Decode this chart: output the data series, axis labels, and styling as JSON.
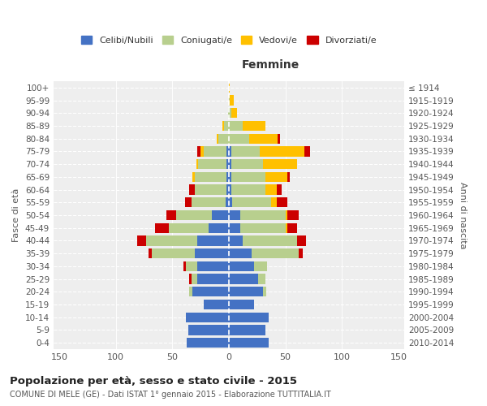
{
  "age_groups": [
    "0-4",
    "5-9",
    "10-14",
    "15-19",
    "20-24",
    "25-29",
    "30-34",
    "35-39",
    "40-44",
    "45-49",
    "50-54",
    "55-59",
    "60-64",
    "65-69",
    "70-74",
    "75-79",
    "80-84",
    "85-89",
    "90-94",
    "95-99",
    "100+"
  ],
  "birth_years": [
    "2010-2014",
    "2005-2009",
    "2000-2004",
    "1995-1999",
    "1990-1994",
    "1985-1989",
    "1980-1984",
    "1975-1979",
    "1970-1974",
    "1965-1969",
    "1960-1964",
    "1955-1959",
    "1950-1954",
    "1945-1949",
    "1940-1944",
    "1935-1939",
    "1930-1934",
    "1925-1929",
    "1920-1924",
    "1915-1919",
    "≤ 1914"
  ],
  "males": {
    "celibi": [
      37,
      36,
      38,
      22,
      32,
      28,
      28,
      30,
      28,
      18,
      15,
      3,
      2,
      2,
      2,
      2,
      0,
      0,
      0,
      0,
      0
    ],
    "coniugati": [
      0,
      0,
      0,
      0,
      3,
      5,
      10,
      38,
      45,
      35,
      32,
      30,
      28,
      28,
      25,
      20,
      9,
      4,
      1,
      0,
      0
    ],
    "vedovi": [
      0,
      0,
      0,
      0,
      0,
      0,
      0,
      0,
      0,
      0,
      0,
      0,
      0,
      2,
      2,
      3,
      2,
      2,
      0,
      0,
      0
    ],
    "divorziati": [
      0,
      0,
      0,
      0,
      0,
      2,
      2,
      3,
      8,
      12,
      8,
      6,
      5,
      0,
      0,
      3,
      0,
      0,
      0,
      0,
      0
    ]
  },
  "females": {
    "nubili": [
      35,
      32,
      35,
      22,
      30,
      26,
      22,
      20,
      12,
      10,
      10,
      3,
      2,
      2,
      2,
      2,
      0,
      0,
      0,
      0,
      0
    ],
    "coniugate": [
      0,
      0,
      0,
      0,
      3,
      6,
      12,
      42,
      48,
      40,
      40,
      34,
      30,
      30,
      28,
      25,
      18,
      12,
      2,
      1,
      0
    ],
    "vedove": [
      0,
      0,
      0,
      0,
      0,
      0,
      0,
      0,
      0,
      2,
      2,
      5,
      10,
      20,
      30,
      40,
      25,
      20,
      5,
      3,
      1
    ],
    "divorziate": [
      0,
      0,
      0,
      0,
      0,
      0,
      0,
      3,
      8,
      8,
      10,
      10,
      5,
      2,
      0,
      5,
      2,
      0,
      0,
      0,
      0
    ]
  },
  "colors": {
    "celibi": "#4472c4",
    "coniugati": "#b8cf8e",
    "vedovi": "#ffc000",
    "divorziati": "#cc0000"
  },
  "title": "Popolazione per età, sesso e stato civile - 2015",
  "subtitle": "COMUNE DI MELE (GE) - Dati ISTAT 1° gennaio 2015 - Elaborazione TUTTITALIA.IT",
  "xlabel_right": "Femmine",
  "ylabel_left": "Fasce di età",
  "ylabel_right": "Anni di nascita",
  "xlim": 155,
  "legend_labels": [
    "Celibi/Nubili",
    "Coniugati/e",
    "Vedovi/e",
    "Divorziati/e"
  ],
  "background_color": "#ffffff",
  "plot_bg_color": "#eeeeee"
}
